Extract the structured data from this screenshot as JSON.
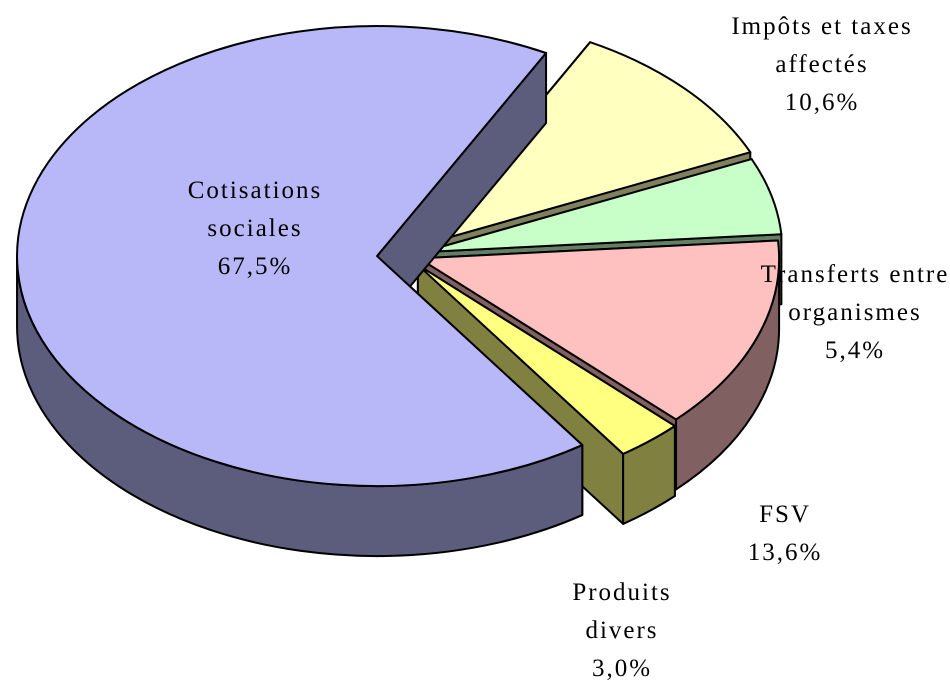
{
  "chart_data": {
    "type": "pie",
    "categories": [
      "Impôts et taxes affectés",
      "Transferts entre organismes",
      "FSV",
      "Produits divers",
      "Cotisations sociales"
    ],
    "values": [
      10.6,
      5.4,
      13.6,
      3.0,
      67.5
    ],
    "value_labels": [
      "10,6%",
      "5,4%",
      "13,6%",
      "3,0%",
      "67,5%"
    ],
    "colors": [
      "#ffffc0",
      "#c8ffc8",
      "#ffc0c0",
      "#ffff80",
      "#b8b8f8"
    ]
  }
}
